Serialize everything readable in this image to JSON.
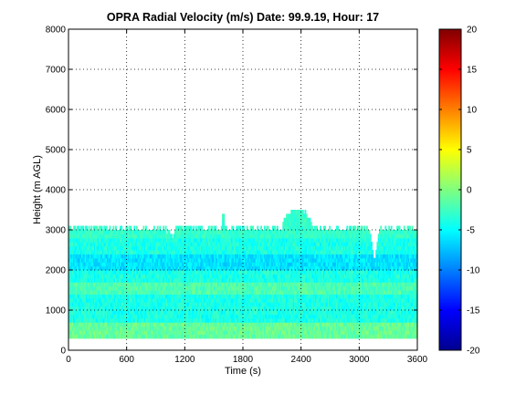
{
  "chart_data": {
    "type": "heatmap",
    "title": "OPRA Radial Velocity (m/s)  Date: 99.9.19, Hour: 17",
    "xlabel": "Time (s)",
    "ylabel": "Height (m AGL)",
    "xlim": [
      0,
      3600
    ],
    "ylim": [
      0,
      8000
    ],
    "x_ticks": [
      "0",
      "600",
      "1200",
      "1800",
      "2400",
      "3000",
      "3600"
    ],
    "y_ticks": [
      "0",
      "1000",
      "2000",
      "3000",
      "4000",
      "5000",
      "6000",
      "7000",
      "8000"
    ],
    "grid": true,
    "colormap": "jet",
    "colorbar": {
      "range": [
        -20,
        20
      ],
      "ticks": [
        "20",
        "15",
        "10",
        "5",
        "0",
        "-5",
        "-10",
        "-15",
        "-20"
      ]
    },
    "data_extent": {
      "min_height": 300,
      "typical_top_height": 3000,
      "max_top_height": 3450
    },
    "dominant_values": {
      "typical_velocity": -4,
      "low_band_500m": -1,
      "band_1500m": -2,
      "band_2200m": -6
    }
  }
}
